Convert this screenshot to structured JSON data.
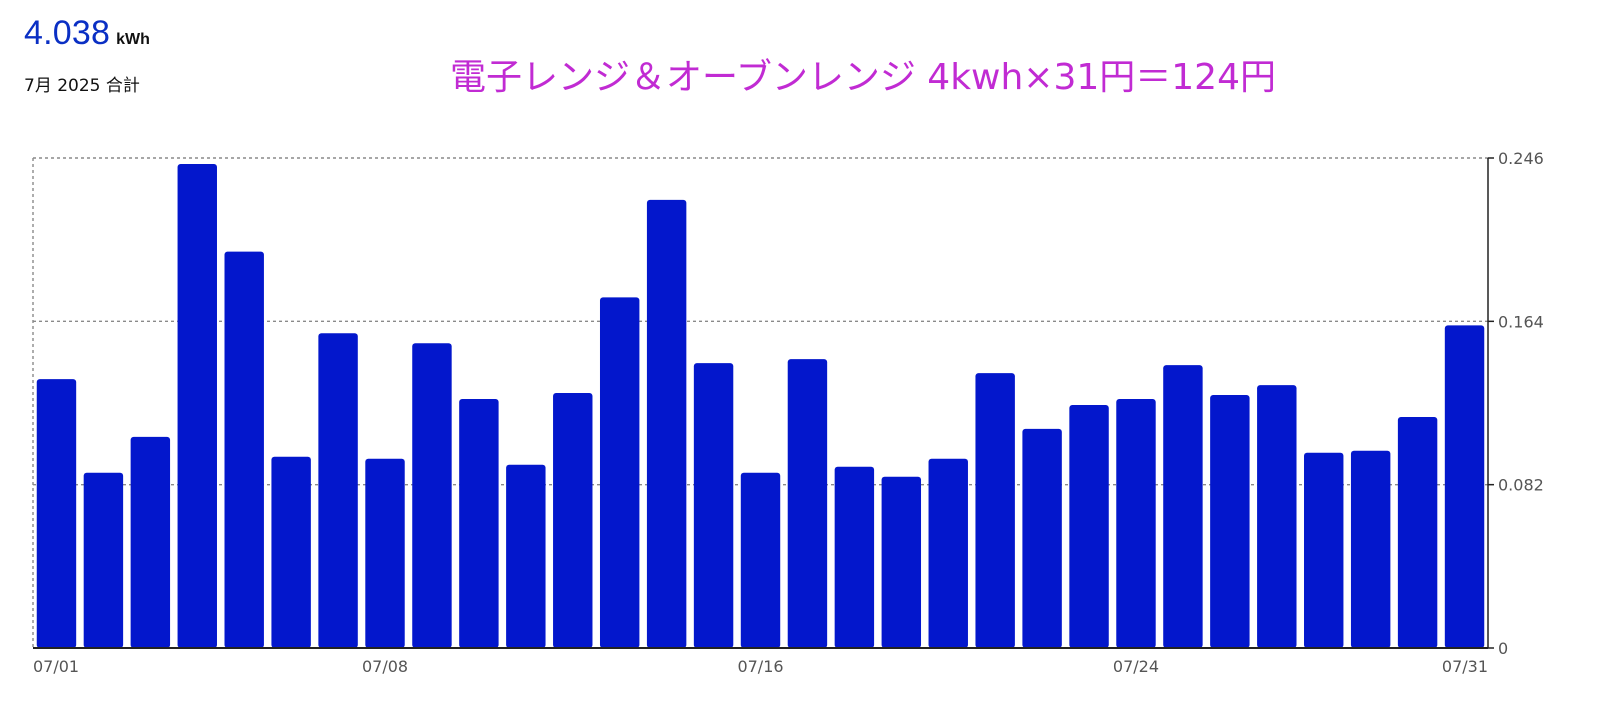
{
  "summary": {
    "total_value": "4.038",
    "total_unit": "kWh",
    "period_label": "7月 2025 合計"
  },
  "headline": "電子レンジ＆オーブンレンジ 4kwh×31円＝124円",
  "colors": {
    "bar": "#0317cc",
    "headline": "#c12bd3",
    "total_value": "#0a2fc4",
    "grid": "#8a8a8a",
    "tick_text": "#555555"
  },
  "chart_data": {
    "type": "bar",
    "categories": [
      "07/01",
      "07/02",
      "07/03",
      "07/04",
      "07/05",
      "07/06",
      "07/07",
      "07/08",
      "07/09",
      "07/10",
      "07/11",
      "07/12",
      "07/13",
      "07/14",
      "07/15",
      "07/16",
      "07/17",
      "07/18",
      "07/19",
      "07/20",
      "07/21",
      "07/22",
      "07/23",
      "07/24",
      "07/25",
      "07/26",
      "07/27",
      "07/28",
      "07/29",
      "07/30",
      "07/31"
    ],
    "values": [
      0.135,
      0.088,
      0.106,
      0.243,
      0.199,
      0.096,
      0.158,
      0.095,
      0.153,
      0.125,
      0.092,
      0.128,
      0.176,
      0.225,
      0.143,
      0.088,
      0.145,
      0.091,
      0.086,
      0.095,
      0.138,
      0.11,
      0.122,
      0.125,
      0.142,
      0.127,
      0.132,
      0.098,
      0.099,
      0.116,
      0.162
    ],
    "x_tick_labels": [
      "07/01",
      "07/08",
      "07/16",
      "07/24",
      "07/31"
    ],
    "y_ticks": [
      0,
      0.082,
      0.164,
      0.246
    ],
    "y_tick_labels": [
      "0",
      "0.082",
      "0.164",
      "0.246"
    ],
    "ylim": [
      0,
      0.246
    ],
    "y_axis_position": "right",
    "grid": true,
    "legend": "none"
  }
}
